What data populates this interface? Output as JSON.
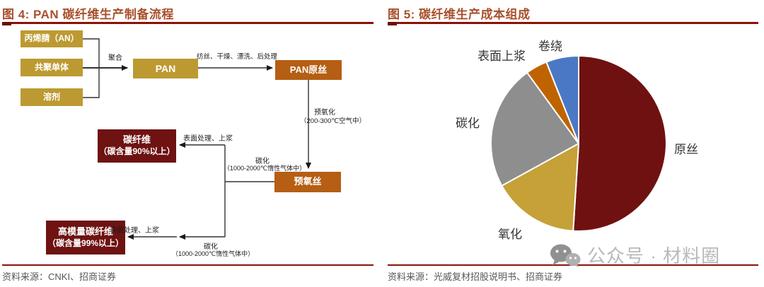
{
  "figure4": {
    "title": "图 4: PAN 碳纤维生产制备流程",
    "source": "资料来源：CNKI、招商证券",
    "flowchart": {
      "nodes": {
        "an": "丙烯腈（AN）",
        "comonomer": "共聚单体",
        "solvent": "溶剂",
        "pan": "PAN",
        "pan_precursor": "PAN原丝",
        "preoxidized_fiber": "预氧丝",
        "carbon_fiber": "碳纤维",
        "carbon_fiber_sub": "（碳含量90%以上）",
        "high_modulus_fiber": "高模量碳纤维",
        "high_modulus_fiber_sub": "（碳含量99%以上）"
      },
      "edges": {
        "polymerization": "聚合",
        "spinning": "纺丝、干燥、漂洗、后处理",
        "preoxidation": "预氧化",
        "preoxidation_cond": "（200-300℃空气中）",
        "carbonization": "碳化",
        "carbonization_cond": "（1000-2000℃惰性气体中）",
        "surface_sizing": "表面处理、上浆"
      },
      "colors": {
        "gold_box": "#bd9a31",
        "orange_box": "#b55e14",
        "maroon_box": "#6e1212",
        "connector": "#333333"
      }
    }
  },
  "figure5": {
    "title": "图 5: 碳纤维生产成本组成",
    "source": "资料来源：光威复材招股说明书、招商证券"
  },
  "watermark": {
    "icon": "wechat-icon",
    "text": "公众号 · 材料圈"
  },
  "chart_data": {
    "type": "pie",
    "title": "碳纤维生产成本组成",
    "unit": "% (estimated from slice angles, no numeric labels shown)",
    "direction": "clockwise",
    "start_angle": "12 o'clock",
    "legend_position": "labels around pie",
    "slices": [
      {
        "label": "原丝",
        "value": 51,
        "color": "#6f1110"
      },
      {
        "label": "氧化",
        "value": 16,
        "color": "#c5a138"
      },
      {
        "label": "碳化",
        "value": 23,
        "color": "#8e8e8e"
      },
      {
        "label": "表面上浆",
        "value": 4,
        "color": "#bf6300"
      },
      {
        "label": "卷绕",
        "value": 6,
        "color": "#4b78c4"
      }
    ],
    "accent_colors": {
      "title": "#a8502c",
      "rule": "#8a1208",
      "source_text": "#575757"
    }
  }
}
